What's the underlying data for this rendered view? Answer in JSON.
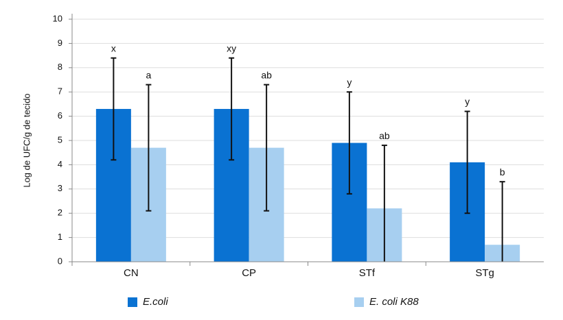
{
  "chart_data": {
    "type": "bar",
    "y_label": "Log de UFC/g de tecido",
    "categories": [
      "CN",
      "CP",
      "STf",
      "STg"
    ],
    "series": [
      {
        "name": "E.coli",
        "color": "#0a72d2",
        "values": [
          6.3,
          6.3,
          4.9,
          4.1
        ],
        "errors": [
          2.1,
          2.1,
          2.1,
          2.1
        ],
        "letters": [
          "x",
          "xy",
          "y",
          "y"
        ]
      },
      {
        "name": "E. coli K88",
        "color": "#a7cff0",
        "values": [
          4.7,
          4.7,
          2.2,
          0.7
        ],
        "errors": [
          2.6,
          2.6,
          2.6,
          2.6
        ],
        "letters": [
          "a",
          "ab",
          "ab",
          "b"
        ]
      }
    ],
    "ylim": [
      0,
      10
    ],
    "yticks": [
      0,
      1,
      2,
      3,
      4,
      5,
      6,
      7,
      8,
      9,
      10
    ],
    "grid": true,
    "legend": "bottom"
  }
}
